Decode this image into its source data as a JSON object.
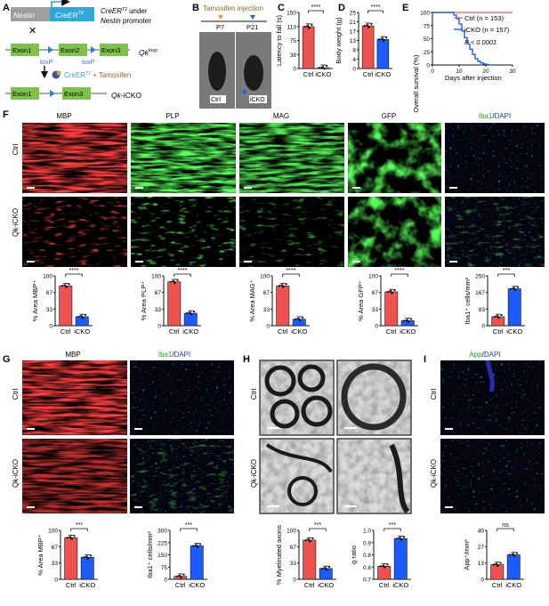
{
  "colors": {
    "ctrl": "#ef5350",
    "icko": "#1e5bff",
    "green": "#18d318",
    "red": "#ff1a1a",
    "blue": "#1e32c8"
  },
  "panels": {
    "A": "A",
    "B": "B",
    "C": "C",
    "D": "D",
    "E": "E",
    "F": "F",
    "G": "G",
    "H": "H",
    "I": "I"
  },
  "A": {
    "nestin": "Nestin",
    "creer": "CreER",
    "creer_sup": "T2",
    "text1": "CreER",
    "text1_sup": "T2",
    "text1_rest": " under",
    "text2": "Nestin",
    "text2_rest": " promoter",
    "exon1": "Exon1",
    "exon2": "Exon2",
    "exon3": "Exon3",
    "loxp1": "loxP",
    "loxp2": "loxP",
    "qk_loxp": "Qk",
    "qk_loxp_sup": "loxp",
    "creer2": "CreER",
    "creer2_sup": "T2",
    "plus_tam": " + Tamoxifen",
    "exon1b": "Exon1",
    "exon3b": "Exon3",
    "qk_icko": "Qk",
    "icko_suffix": "-iCKO"
  },
  "B": {
    "title": "Tamoxifen injection",
    "p7": "P7",
    "p21": "P21",
    "ctrl": "Ctrl",
    "icko": "iCKO"
  },
  "C": {
    "ylabel": "Latency to fall (s)",
    "sig": "****",
    "yticks": [
      "0",
      "50",
      "100",
      "150"
    ],
    "xticks": [
      "Ctrl",
      "iCKO"
    ]
  },
  "D": {
    "ylabel": "Body weight (g)",
    "sig": "****",
    "yticks": [
      "0",
      "5",
      "10",
      "15",
      "20",
      "25"
    ],
    "xticks": [
      "Ctrl",
      "iCKO"
    ]
  },
  "E": {
    "ylabel": "Overall survival (%)",
    "xlabel": "Days after injection",
    "yticks": [
      "0",
      "25",
      "50",
      "75",
      "100"
    ],
    "xticks": [
      "0",
      "10",
      "20",
      "30"
    ],
    "legend_ctrl": "Ctrl (n = 153)",
    "legend_icko": "iCKO (n = 157)",
    "pval": "P < 0.0001"
  },
  "F": {
    "cols": [
      "MBP",
      "PLP",
      "MAG",
      "GFP"
    ],
    "iba": "Iba1",
    "dapi": "DAPI",
    "sep": "/",
    "row_ctrl": "Ctrl",
    "row_icko": "Qk-iCKO"
  },
  "G": {
    "mbp": "MBP",
    "iba": "Iba1",
    "dapi": "DAPI",
    "sep": "/",
    "row_ctrl": "Ctrl",
    "row_icko": "Qk-iCKO"
  },
  "H": {
    "row_ctrl": "Ctrl",
    "row_icko": "Qk-iCKO"
  },
  "I": {
    "app": "App",
    "dapi": "DAPI",
    "sep": "/",
    "row_ctrl": "Ctrl",
    "row_icko": "Qk-iCKO"
  },
  "chart_data": [
    {
      "type": "bar",
      "id": "C",
      "categories": [
        "Ctrl",
        "iCKO"
      ],
      "values": [
        112,
        2
      ],
      "ylabel": "Latency to fall (s)",
      "ylim": [
        0,
        150
      ],
      "sig": "****"
    },
    {
      "type": "bar",
      "id": "D",
      "categories": [
        "Ctrl",
        "iCKO"
      ],
      "values": [
        19,
        13
      ],
      "ylabel": "Body weight (g)",
      "ylim": [
        0,
        25
      ],
      "sig": "****"
    },
    {
      "type": "line",
      "id": "E",
      "xlabel": "Days after injection",
      "ylabel": "Overall survival (%)",
      "xlim": [
        0,
        30
      ],
      "ylim": [
        0,
        100
      ],
      "series": [
        {
          "name": "Ctrl (n = 153)",
          "x": [
            0,
            30
          ],
          "y": [
            100,
            100
          ]
        },
        {
          "name": "iCKO (n = 157)",
          "x": [
            0,
            7,
            8,
            9,
            10,
            11,
            12,
            13,
            14,
            15,
            16,
            17,
            18,
            19,
            20,
            21
          ],
          "y": [
            100,
            100,
            95,
            88,
            78,
            65,
            52,
            40,
            30,
            20,
            12,
            7,
            4,
            2,
            1,
            0
          ]
        }
      ]
    },
    {
      "type": "bar",
      "id": "F-MBP",
      "categories": [
        "Ctrl",
        "iCKO"
      ],
      "values": [
        80,
        18
      ],
      "ylabel": "% Area MBP+",
      "ylim": [
        0,
        100
      ],
      "sig": "****"
    },
    {
      "type": "bar",
      "id": "F-PLP",
      "categories": [
        "Ctrl",
        "iCKO"
      ],
      "values": [
        88,
        25
      ],
      "ylabel": "% Area PLP+",
      "ylim": [
        0,
        100
      ],
      "sig": "****"
    },
    {
      "type": "bar",
      "id": "F-MAG",
      "categories": [
        "Ctrl",
        "iCKO"
      ],
      "values": [
        80,
        13
      ],
      "ylabel": "% Area MAG+",
      "ylim": [
        0,
        100
      ],
      "sig": "****"
    },
    {
      "type": "bar",
      "id": "F-GFP",
      "categories": [
        "Ctrl",
        "iCKO"
      ],
      "values": [
        68,
        10
      ],
      "ylabel": "% Area GFP+",
      "ylim": [
        0,
        100
      ],
      "sig": "****"
    },
    {
      "type": "bar",
      "id": "F-Iba1",
      "categories": [
        "Ctrl",
        "iCKO"
      ],
      "values": [
        45,
        185
      ],
      "ylabel": "Iba1+ cells/mm2",
      "ylim": [
        0,
        250
      ],
      "sig": "***"
    },
    {
      "type": "bar",
      "id": "G-MBP",
      "categories": [
        "Ctrl",
        "iCKO"
      ],
      "values": [
        85,
        45
      ],
      "ylabel": "% Area MBP+",
      "ylim": [
        0,
        100
      ],
      "sig": "***"
    },
    {
      "type": "bar",
      "id": "G-Iba1",
      "categories": [
        "Ctrl",
        "iCKO"
      ],
      "values": [
        18,
        205
      ],
      "ylabel": "Iba1+ cells/mm2",
      "ylim": [
        0,
        300
      ],
      "sig": "***"
    },
    {
      "type": "bar",
      "id": "H-myel",
      "categories": [
        "Ctrl",
        "iCKO"
      ],
      "values": [
        80,
        22
      ],
      "ylabel": "% Myelinated axons",
      "ylim": [
        0,
        100
      ],
      "sig": "***"
    },
    {
      "type": "bar",
      "id": "H-g",
      "categories": [
        "Ctrl",
        "iCKO"
      ],
      "values": [
        0.78,
        0.95
      ],
      "ylabel": "g ratio",
      "ylim": [
        0.7,
        1.0
      ],
      "sig": "***"
    },
    {
      "type": "bar",
      "id": "I-App",
      "categories": [
        "Ctrl",
        "iCKO"
      ],
      "values": [
        12,
        20
      ],
      "ylabel": "App+/mm2",
      "ylim": [
        0,
        40
      ],
      "sig": "ns"
    }
  ]
}
